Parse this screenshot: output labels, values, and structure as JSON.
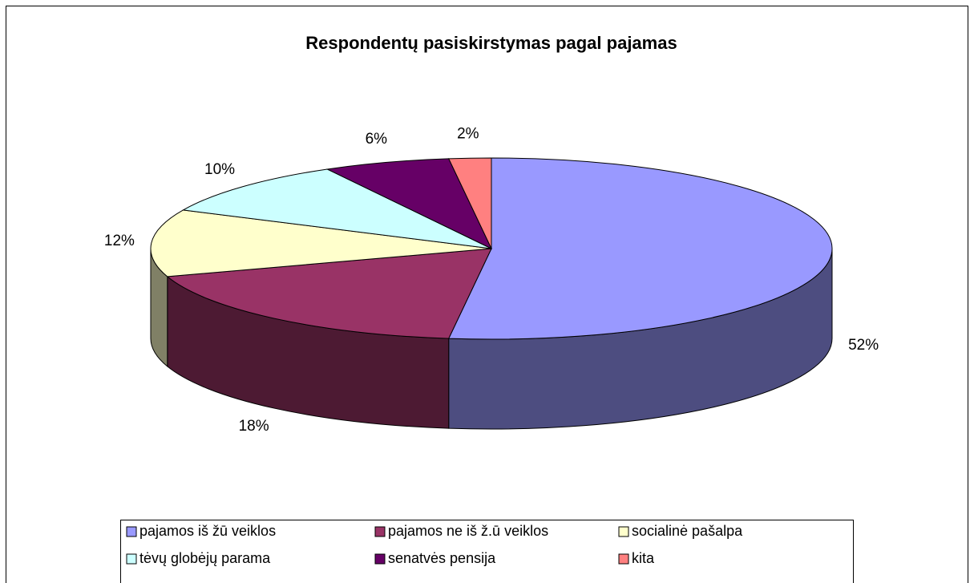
{
  "chart_data": {
    "type": "pie3d",
    "title": "Respondentų pasiskirstymas pagal pajamas",
    "categories": [
      "pajamos iš žū veiklos",
      "pajamos ne iš ž.ū veiklos",
      "socialinė pašalpa",
      "tėvų globėjų parama",
      "senatvės pensija",
      "kita"
    ],
    "values": [
      52,
      18,
      12,
      10,
      6,
      2
    ],
    "value_labels": [
      "52%",
      "18%",
      "12%",
      "10%",
      "6%",
      "2%"
    ],
    "colors": [
      "#9999ff",
      "#993366",
      "#ffffcc",
      "#ccffff",
      "#660066",
      "#ff8080"
    ],
    "legend": "bottom"
  }
}
